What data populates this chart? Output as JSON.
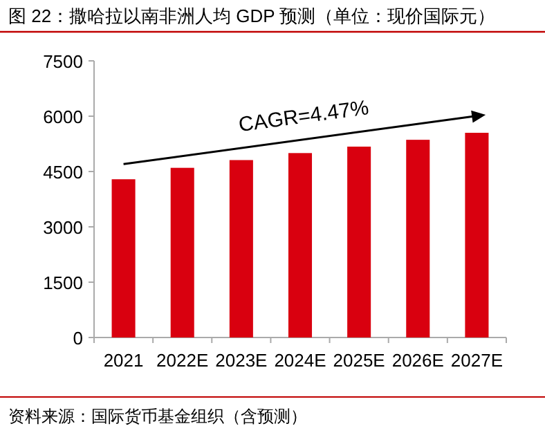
{
  "chart_data": {
    "type": "bar",
    "title": "图 22：撒哈拉以南非洲人均 GDP 预测（单位：现价国际元）",
    "categories": [
      "2021",
      "2022E",
      "2023E",
      "2024E",
      "2025E",
      "2026E",
      "2027E"
    ],
    "values": [
      4290,
      4600,
      4810,
      5000,
      5175,
      5360,
      5550
    ],
    "color": "#d9000f",
    "ylim": [
      0,
      7500
    ],
    "yticks": [
      0,
      1500,
      3000,
      4500,
      6000,
      7500
    ],
    "grid": false,
    "annotations": [
      "CAGR=4.47%",
      "资料来源：国际货币基金组织（含预测）"
    ]
  }
}
